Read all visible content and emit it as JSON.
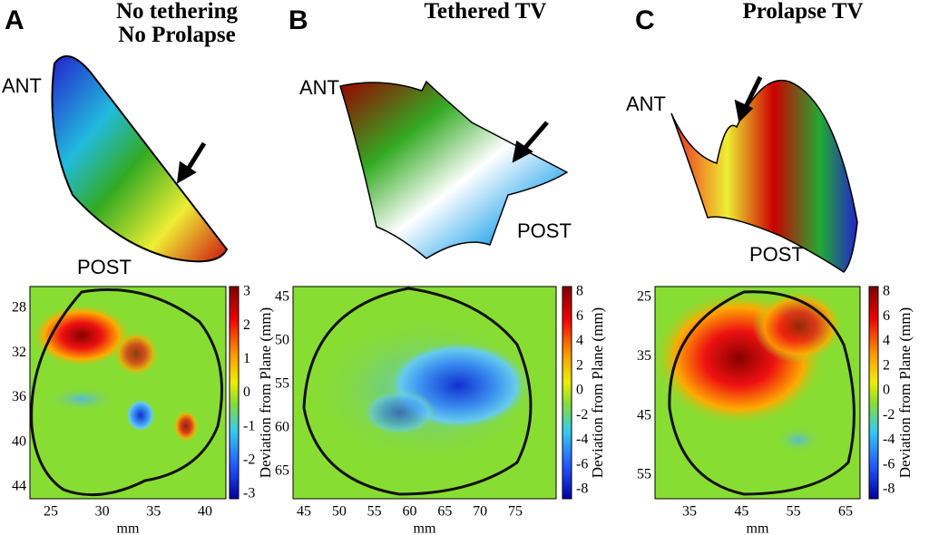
{
  "panels": [
    {
      "letter": "A",
      "title": [
        "No tethering",
        "No Prolapse"
      ],
      "ant": "ANT",
      "post": "POST",
      "x_label": "mm",
      "colorbar_label": "Deviation from Plane (mm)",
      "xticks": [
        25,
        30,
        35,
        40
      ],
      "yticks": [
        28,
        32,
        36,
        40,
        44
      ],
      "colorbar_ticks": [
        3,
        2,
        1,
        0,
        -1,
        -2,
        -3
      ]
    },
    {
      "letter": "B",
      "title": [
        "Tethered TV"
      ],
      "ant": "ANT",
      "post": "POST",
      "x_label": "mm",
      "colorbar_label": "Deviation from Plane (mm)",
      "xticks": [
        45,
        50,
        55,
        60,
        65,
        70,
        75
      ],
      "yticks": [
        45,
        50,
        55,
        60,
        65
      ],
      "colorbar_ticks": [
        8,
        6,
        4,
        2,
        0,
        -2,
        -4,
        -6,
        -8
      ]
    },
    {
      "letter": "C",
      "title": [
        "Prolapse TV"
      ],
      "ant": "ANT",
      "post": "POST",
      "x_label": "mm",
      "colorbar_label": "Deviation from Plane (mm)",
      "xticks": [
        35,
        45,
        55,
        65
      ],
      "yticks": [
        25,
        35,
        45,
        55
      ],
      "colorbar_ticks": [
        8,
        6,
        4,
        2,
        0,
        -2,
        -4,
        -6,
        -8
      ]
    }
  ]
}
